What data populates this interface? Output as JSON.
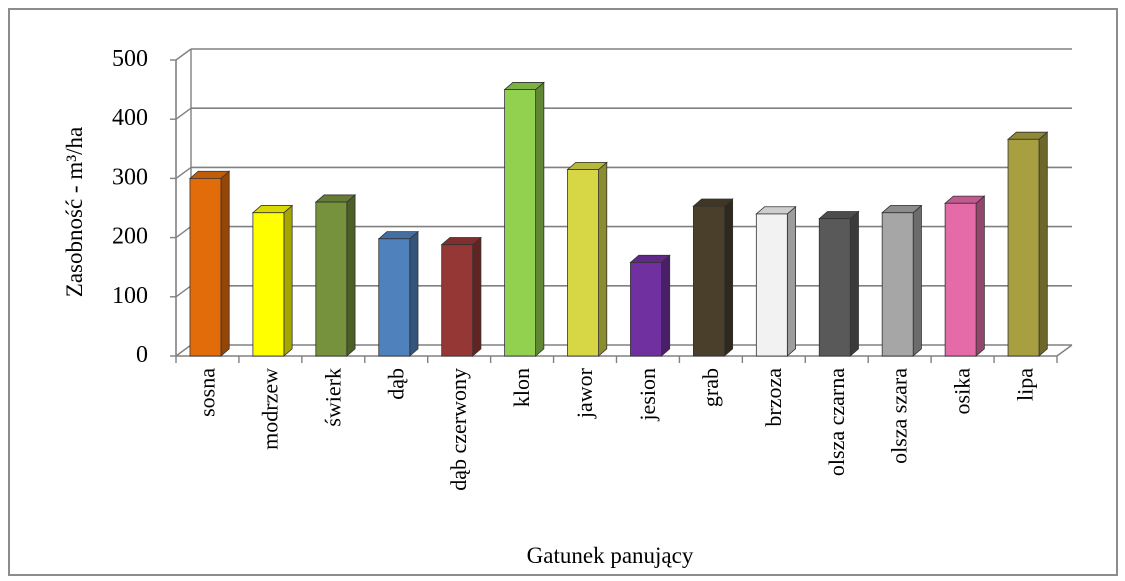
{
  "chart_data": {
    "type": "bar",
    "xlabel": "Gatunek panujący",
    "ylabel": "Zasobność - m³/ha",
    "ylim": [
      0,
      500
    ],
    "yticks": [
      0,
      100,
      200,
      300,
      400,
      500
    ],
    "grid": true,
    "categories": [
      "sosna",
      "modrzew",
      "świerk",
      "dąb",
      "dąb czerwony",
      "klon",
      "jawor",
      "jesion",
      "grab",
      "brzoza",
      "olsza czarna",
      "olsza szara",
      "osika",
      "lipa"
    ],
    "values": [
      300,
      242,
      260,
      198,
      188,
      450,
      315,
      158,
      253,
      240,
      232,
      242,
      258,
      366
    ],
    "colors": [
      "#E36C0A",
      "#FFFF00",
      "#76923C",
      "#4F81BD",
      "#953735",
      "#92D050",
      "#D7D746",
      "#7030A0",
      "#4A3F2A",
      "#F2F2F2",
      "#595959",
      "#A6A6A6",
      "#E46AA8",
      "#A8A040"
    ]
  }
}
